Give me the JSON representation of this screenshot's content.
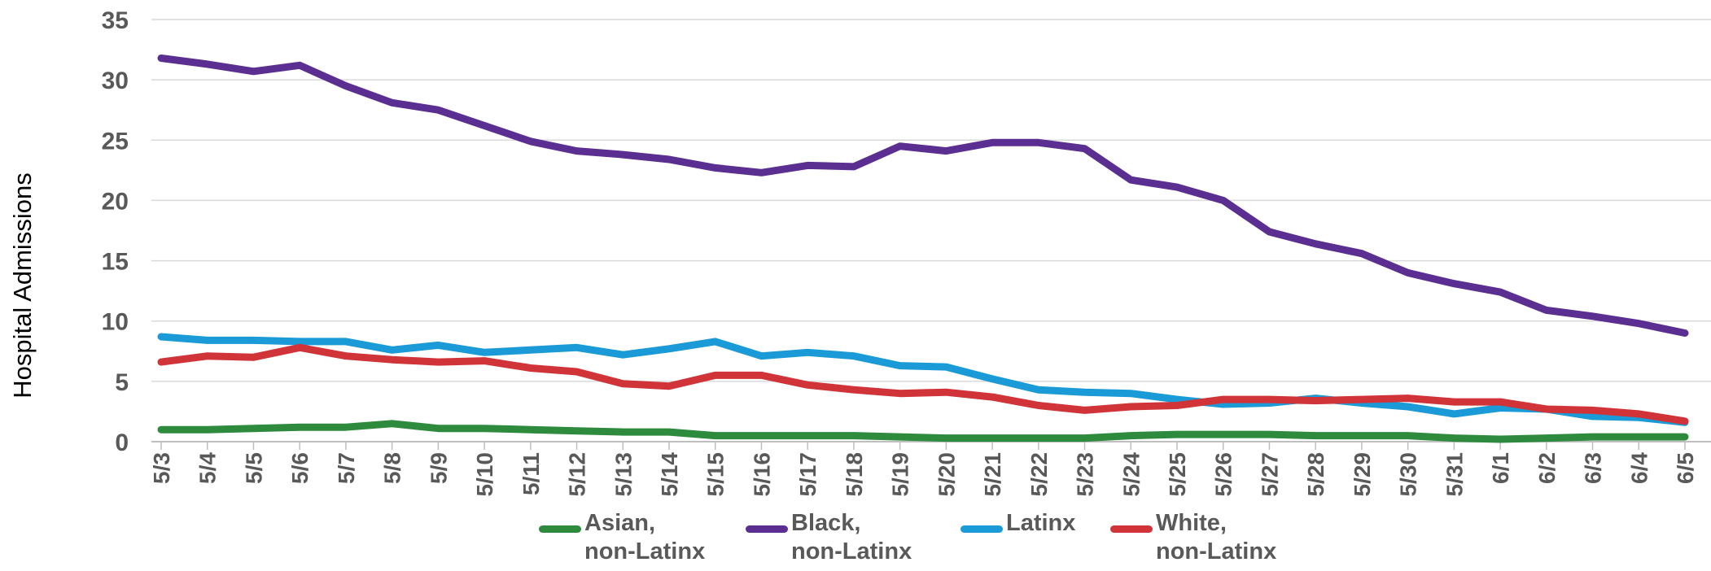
{
  "chart_data": {
    "type": "line",
    "title": "",
    "xlabel": "",
    "ylabel": "Hospital Admissions",
    "ylim": [
      0,
      35
    ],
    "yticks": [
      "0",
      "5",
      "10",
      "15",
      "20",
      "25",
      "30",
      "35"
    ],
    "grid": true,
    "legend_position": "bottom",
    "categories": [
      "5/3",
      "5/4",
      "5/5",
      "5/6",
      "5/7",
      "5/8",
      "5/9",
      "5/10",
      "5/11",
      "5/12",
      "5/13",
      "5/14",
      "5/15",
      "5/16",
      "5/17",
      "5/18",
      "5/19",
      "5/20",
      "5/21",
      "5/22",
      "5/23",
      "5/24",
      "5/25",
      "5/26",
      "5/27",
      "5/28",
      "5/29",
      "5/30",
      "5/31",
      "6/1",
      "6/2",
      "6/3",
      "6/4",
      "6/5"
    ],
    "series": [
      {
        "name": "Asian,\nnon-Latinx",
        "color": "#2e8b3e",
        "values": [
          1.0,
          1.0,
          1.1,
          1.2,
          1.2,
          1.5,
          1.1,
          1.1,
          1.0,
          0.9,
          0.8,
          0.8,
          0.5,
          0.5,
          0.5,
          0.5,
          0.4,
          0.3,
          0.3,
          0.3,
          0.3,
          0.5,
          0.6,
          0.6,
          0.6,
          0.5,
          0.5,
          0.5,
          0.3,
          0.2,
          0.3,
          0.4,
          0.4,
          0.4
        ]
      },
      {
        "name": "Black,\nnon-Latinx",
        "color": "#5b2e91",
        "values": [
          31.8,
          31.3,
          30.7,
          31.2,
          29.5,
          28.1,
          27.5,
          26.2,
          24.9,
          24.1,
          23.8,
          23.4,
          22.7,
          22.3,
          22.9,
          22.8,
          24.5,
          24.1,
          24.8,
          24.8,
          24.3,
          21.7,
          21.1,
          20.0,
          17.4,
          16.4,
          15.6,
          14.0,
          13.1,
          12.4,
          10.9,
          10.4,
          9.8,
          9.0
        ]
      },
      {
        "name": "Latinx",
        "color": "#1a9ad6",
        "values": [
          8.7,
          8.4,
          8.4,
          8.3,
          8.3,
          7.6,
          8.0,
          7.4,
          7.6,
          7.8,
          7.2,
          7.7,
          8.3,
          7.1,
          7.4,
          7.1,
          6.3,
          6.2,
          5.2,
          4.3,
          4.1,
          4.0,
          3.5,
          3.1,
          3.2,
          3.6,
          3.2,
          2.9,
          2.3,
          2.8,
          2.7,
          2.1,
          2.0,
          1.6
        ]
      },
      {
        "name": "White,\nnon-Latinx",
        "color": "#d13438",
        "values": [
          6.6,
          7.1,
          7.0,
          7.8,
          7.1,
          6.8,
          6.6,
          6.7,
          6.1,
          5.8,
          4.8,
          4.6,
          5.5,
          5.5,
          4.7,
          4.3,
          4.0,
          4.1,
          3.7,
          3.0,
          2.6,
          2.9,
          3.0,
          3.5,
          3.5,
          3.4,
          3.5,
          3.6,
          3.3,
          3.3,
          2.7,
          2.6,
          2.3,
          1.7
        ]
      }
    ]
  },
  "legend": [
    {
      "key": "asian",
      "label": "Asian,\nnon-Latinx",
      "color": "#2e8b3e"
    },
    {
      "key": "black",
      "label": "Black,\nnon-Latinx",
      "color": "#5b2e91"
    },
    {
      "key": "latinx",
      "label": "Latinx",
      "color": "#1a9ad6"
    },
    {
      "key": "white",
      "label": "White,\nnon-Latinx",
      "color": "#d13438"
    }
  ]
}
